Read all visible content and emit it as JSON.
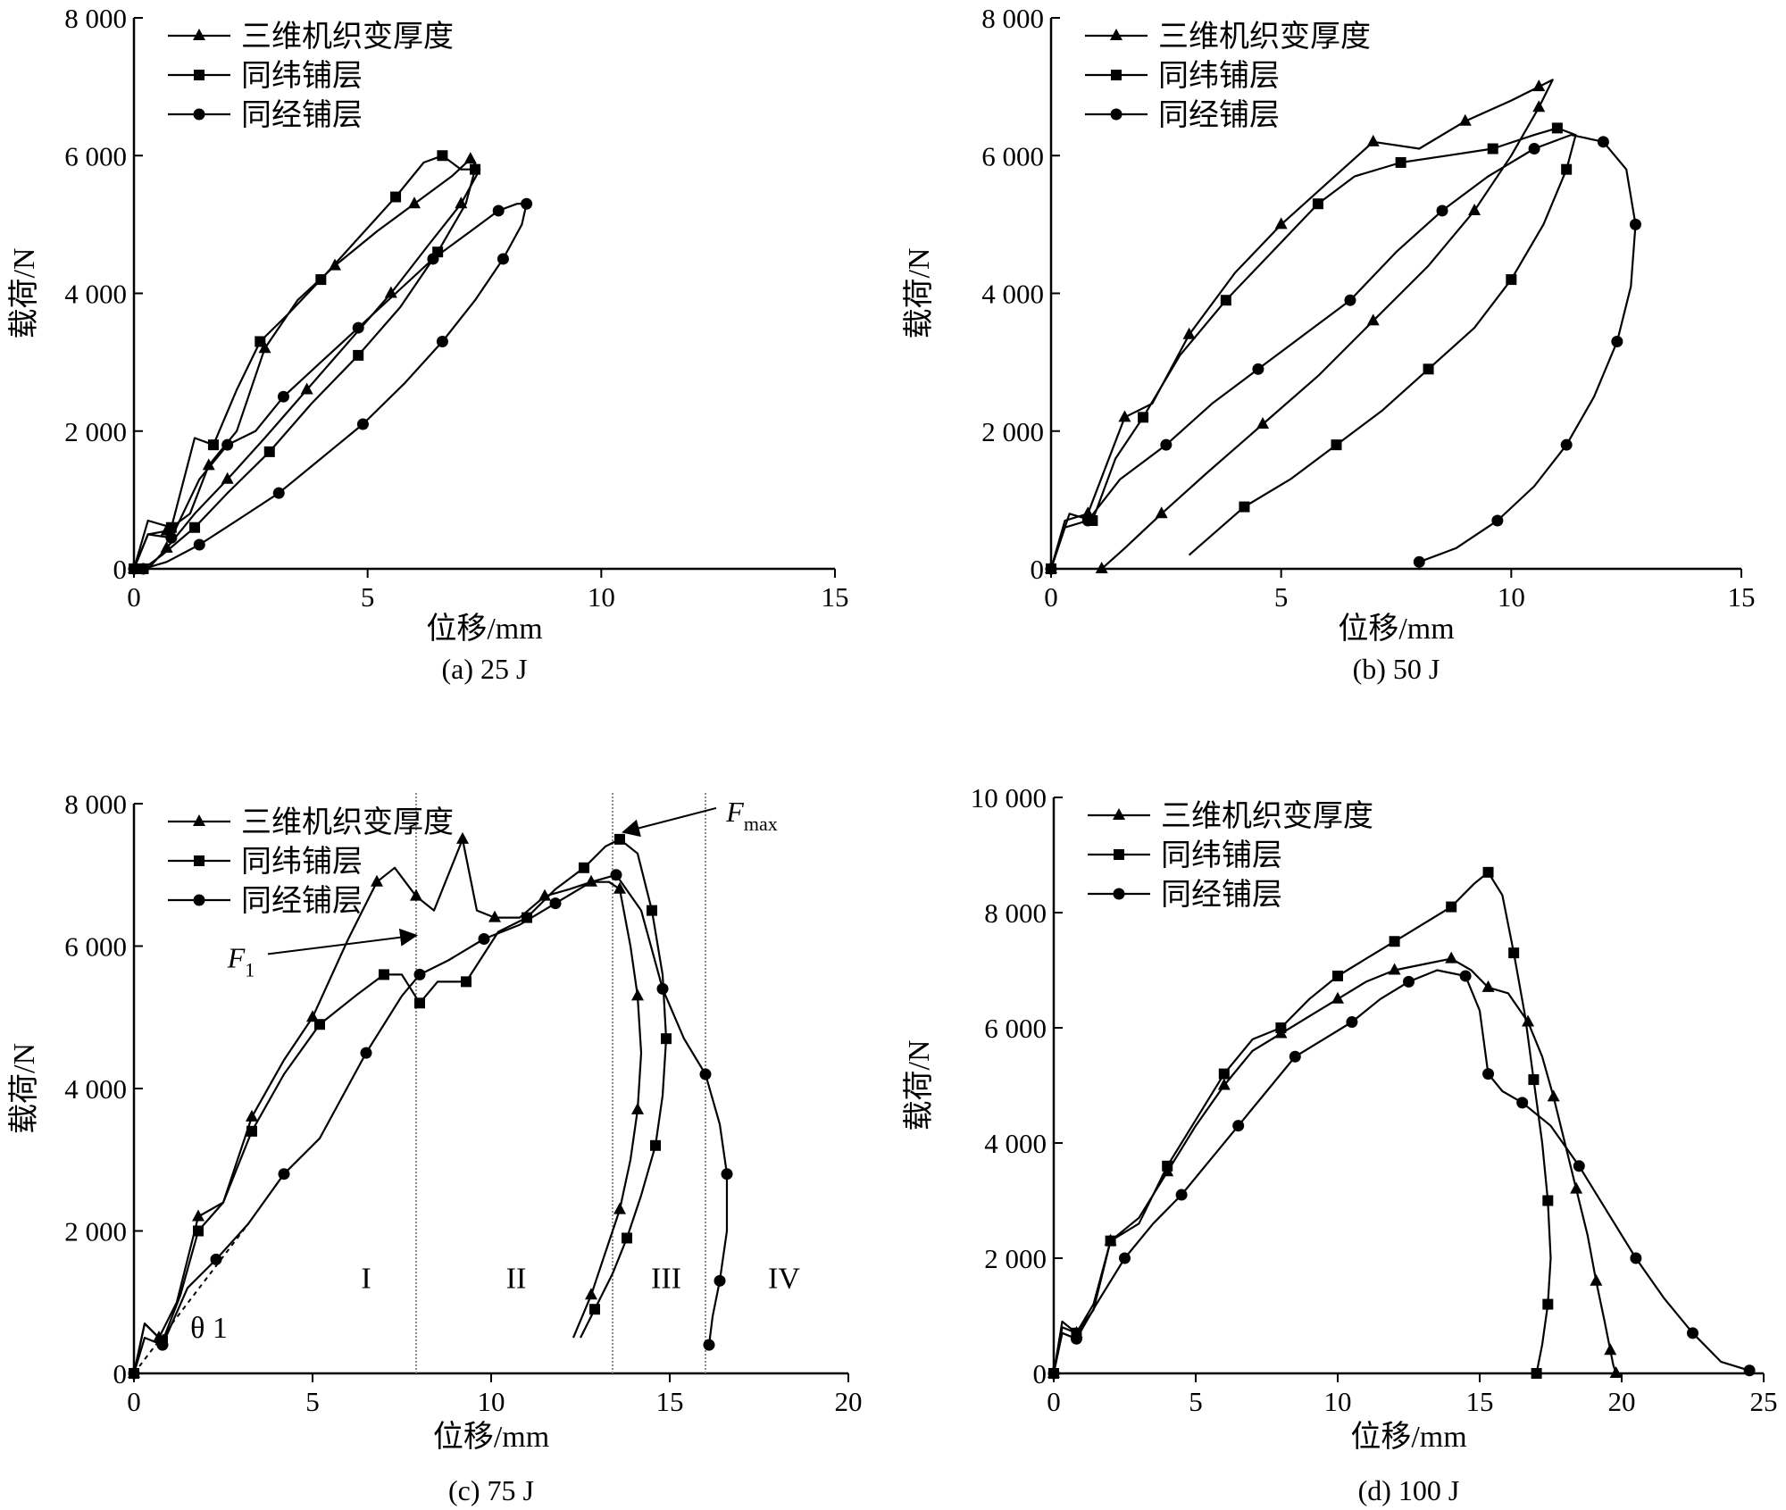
{
  "legend_labels": [
    "三维机织变厚度",
    "同纬铺层",
    "同经铺层"
  ],
  "xlabel": "位移/mm",
  "ylabel": "载荷/N",
  "chart_data": [
    {
      "type": "line",
      "caption": "(a) 25 J",
      "xlabel": "位移/mm",
      "ylabel": "载荷/N",
      "xlim": [
        0,
        15
      ],
      "ylim": [
        0,
        8000
      ],
      "xticks": [
        0,
        5,
        10,
        15
      ],
      "xtick_labels": [
        "0",
        "5",
        "10",
        "15"
      ],
      "yticks": [
        0,
        2000,
        4000,
        6000,
        8000
      ],
      "ytick_labels": [
        "0",
        "2 000",
        "4 000",
        "6 000",
        "8 000"
      ],
      "legend": "top-left",
      "series": [
        {
          "name": "三维机织变厚度",
          "marker": "triangle",
          "x": [
            0,
            0.3,
            0.7,
            1.2,
            1.6,
            2.2,
            2.8,
            3.5,
            4.3,
            5.2,
            6.0,
            6.8,
            7.2,
            7.4,
            7.0,
            6.3,
            5.5,
            4.6,
            3.7,
            2.8,
            2.0,
            1.3,
            0.7,
            0.3
          ],
          "y": [
            0,
            500,
            550,
            800,
            1500,
            2000,
            3200,
            3900,
            4400,
            4900,
            5300,
            5700,
            5950,
            5800,
            5300,
            4700,
            4000,
            3300,
            2600,
            1900,
            1300,
            800,
            300,
            0
          ]
        },
        {
          "name": "同纬铺层",
          "marker": "square",
          "x": [
            0,
            0.3,
            0.8,
            1.3,
            1.7,
            2.2,
            2.7,
            3.3,
            4.0,
            4.8,
            5.6,
            6.2,
            6.6,
            7.0,
            7.3,
            7.1,
            6.5,
            5.7,
            4.8,
            3.8,
            2.9,
            2.0,
            1.3,
            0.6,
            0.2
          ],
          "y": [
            0,
            700,
            600,
            1900,
            1800,
            2600,
            3300,
            3700,
            4200,
            4800,
            5400,
            5900,
            6000,
            5800,
            5800,
            5300,
            4600,
            3800,
            3100,
            2400,
            1700,
            1100,
            600,
            200,
            0
          ]
        },
        {
          "name": "同经铺层",
          "marker": "circle",
          "x": [
            0,
            0.3,
            0.8,
            1.4,
            2.0,
            2.6,
            3.2,
            4.0,
            4.8,
            5.6,
            6.4,
            7.2,
            7.8,
            8.2,
            8.4,
            8.3,
            7.9,
            7.3,
            6.6,
            5.8,
            4.9,
            4.0,
            3.1,
            2.2,
            1.4,
            0.7,
            0.2
          ],
          "y": [
            0,
            500,
            450,
            1300,
            1800,
            2000,
            2500,
            3000,
            3500,
            4000,
            4500,
            4900,
            5200,
            5300,
            5300,
            5000,
            4500,
            3900,
            3300,
            2700,
            2100,
            1600,
            1100,
            700,
            350,
            100,
            0
          ]
        }
      ]
    },
    {
      "type": "line",
      "caption": "(b) 50 J",
      "xlabel": "位移/mm",
      "ylabel": "载荷/N",
      "xlim": [
        0,
        15
      ],
      "ylim": [
        0,
        8000
      ],
      "xticks": [
        0,
        5,
        10,
        15
      ],
      "xtick_labels": [
        "0",
        "5",
        "10",
        "15"
      ],
      "yticks": [
        0,
        2000,
        4000,
        6000,
        8000
      ],
      "ytick_labels": [
        "0",
        "2 000",
        "4 000",
        "6 000",
        "8 000"
      ],
      "legend": "top-left",
      "series": [
        {
          "name": "三维机织变厚度",
          "marker": "triangle",
          "x": [
            0,
            0.3,
            0.8,
            1.2,
            1.6,
            2.2,
            3.0,
            4.0,
            5.0,
            6.0,
            7.0,
            8.0,
            9.0,
            10.0,
            10.6,
            10.9,
            10.6,
            10.0,
            9.2,
            8.2,
            7.0,
            5.8,
            4.6,
            3.4,
            2.4,
            1.6,
            1.1
          ],
          "y": [
            0,
            700,
            800,
            1500,
            2200,
            2400,
            3400,
            4300,
            5000,
            5600,
            6200,
            6100,
            6500,
            6800,
            7000,
            7100,
            6700,
            6000,
            5200,
            4400,
            3600,
            2800,
            2100,
            1400,
            800,
            300,
            0
          ]
        },
        {
          "name": "同纬铺层",
          "marker": "square",
          "x": [
            0,
            0.4,
            0.9,
            1.4,
            2.0,
            2.8,
            3.8,
            4.8,
            5.8,
            6.6,
            7.6,
            8.6,
            9.6,
            10.5,
            11.0,
            11.4,
            11.2,
            10.7,
            10.0,
            9.2,
            8.2,
            7.2,
            6.2,
            5.2,
            4.2,
            3.0
          ],
          "y": [
            0,
            800,
            700,
            1600,
            2200,
            3100,
            3900,
            4600,
            5300,
            5700,
            5900,
            6000,
            6100,
            6300,
            6400,
            6300,
            5800,
            5000,
            4200,
            3500,
            2900,
            2300,
            1800,
            1300,
            900,
            200
          ]
        },
        {
          "name": "同经铺层",
          "marker": "circle",
          "x": [
            0,
            0.3,
            0.8,
            1.5,
            2.5,
            3.5,
            4.5,
            5.5,
            6.5,
            7.5,
            8.5,
            9.5,
            10.5,
            11.3,
            12.0,
            12.5,
            12.7,
            12.6,
            12.3,
            11.8,
            11.2,
            10.5,
            9.7,
            8.8,
            8.0
          ],
          "y": [
            0,
            600,
            700,
            1300,
            1800,
            2400,
            2900,
            3400,
            3900,
            4600,
            5200,
            5700,
            6100,
            6300,
            6200,
            5800,
            5000,
            4100,
            3300,
            2500,
            1800,
            1200,
            700,
            300,
            100
          ]
        }
      ]
    },
    {
      "type": "line",
      "caption": "(c) 75 J",
      "xlabel": "位移/mm",
      "ylabel": "载荷/N",
      "xlim": [
        0,
        20
      ],
      "ylim": [
        0,
        8000
      ],
      "xticks": [
        0,
        5,
        10,
        15,
        20
      ],
      "xtick_labels": [
        "0",
        "5",
        "10",
        "15",
        "20"
      ],
      "yticks": [
        0,
        2000,
        4000,
        6000,
        8000
      ],
      "ytick_labels": [
        "0",
        "2 000",
        "4 000",
        "6 000",
        "8 000"
      ],
      "legend": "top-left",
      "boundaries": [
        7.9,
        13.4,
        16.0
      ],
      "regions": [
        {
          "label": "I",
          "x": 6.5,
          "y": 1200
        },
        {
          "label": "II",
          "x": 10.7,
          "y": 1200
        },
        {
          "label": "III",
          "x": 14.9,
          "y": 1200
        },
        {
          "label": "IV",
          "x": 18.2,
          "y": 1200
        }
      ],
      "theta": {
        "label": "θ 1",
        "x": 2.1,
        "y": 500
      },
      "tangent": {
        "x": [
          0,
          3.2
        ],
        "y": [
          0,
          2100
        ]
      },
      "annotations": [
        {
          "label": "F",
          "sub": "1",
          "text_x": 3.0,
          "text_y": 5700,
          "point_x": 7.9,
          "point_y": 6150
        },
        {
          "label": "F",
          "sub": "max",
          "text_x": 17.3,
          "text_y": 7750,
          "point_x": 13.7,
          "point_y": 7600
        }
      ],
      "series": [
        {
          "name": "三维机织变厚度",
          "marker": "triangle",
          "x": [
            0,
            0.3,
            0.7,
            1.2,
            1.8,
            2.5,
            3.3,
            4.2,
            5.0,
            6.0,
            6.8,
            7.3,
            7.9,
            8.4,
            9.2,
            9.6,
            10.1,
            10.8,
            11.5,
            12.2,
            12.8,
            13.3,
            13.6,
            13.9,
            14.1,
            14.2,
            14.1,
            13.9,
            13.6,
            13.2,
            12.8,
            12.3
          ],
          "y": [
            0,
            700,
            500,
            1000,
            2200,
            2400,
            3600,
            4400,
            5000,
            6100,
            6900,
            7100,
            6700,
            6500,
            7500,
            6500,
            6400,
            6400,
            6700,
            6800,
            6900,
            6900,
            6800,
            6000,
            5300,
            4500,
            3700,
            3000,
            2300,
            1700,
            1100,
            500
          ]
        },
        {
          "name": "同纬铺层",
          "marker": "square",
          "x": [
            0,
            0.3,
            0.8,
            1.3,
            1.8,
            2.5,
            3.3,
            4.2,
            5.2,
            6.2,
            7.0,
            7.5,
            8.0,
            8.5,
            9.3,
            10.2,
            11.0,
            11.8,
            12.6,
            13.2,
            13.6,
            14.1,
            14.5,
            14.8,
            14.9,
            14.8,
            14.6,
            14.2,
            13.8,
            13.4,
            12.9,
            12.5
          ],
          "y": [
            0,
            700,
            450,
            1100,
            2000,
            2400,
            3400,
            4200,
            4900,
            5300,
            5600,
            5600,
            5200,
            5500,
            5500,
            6200,
            6400,
            6800,
            7100,
            7400,
            7500,
            7300,
            6500,
            5600,
            4700,
            3900,
            3200,
            2500,
            1900,
            1400,
            900,
            500
          ]
        },
        {
          "name": "同经铺层",
          "marker": "circle",
          "x": [
            0,
            0.3,
            0.8,
            1.5,
            2.3,
            3.2,
            4.2,
            5.2,
            6.5,
            7.5,
            8.0,
            8.8,
            9.8,
            10.8,
            11.8,
            12.8,
            13.5,
            14.2,
            14.8,
            15.4,
            16.0,
            16.4,
            16.6,
            16.6,
            16.4,
            16.2,
            16.1
          ],
          "y": [
            0,
            500,
            400,
            1200,
            1600,
            2100,
            2800,
            3300,
            4500,
            5300,
            5600,
            5800,
            6100,
            6300,
            6600,
            6900,
            7000,
            6500,
            5400,
            4700,
            4200,
            3500,
            2800,
            2000,
            1300,
            800,
            400
          ]
        }
      ]
    },
    {
      "type": "line",
      "caption": "(d) 100 J",
      "xlabel": "位移/mm",
      "ylabel": "载荷/N",
      "xlim": [
        0,
        25
      ],
      "ylim": [
        0,
        10000
      ],
      "xticks": [
        0,
        5,
        10,
        15,
        20,
        25
      ],
      "xtick_labels": [
        "0",
        "5",
        "10",
        "15",
        "20",
        "25"
      ],
      "yticks": [
        0,
        2000,
        4000,
        6000,
        8000,
        10000
      ],
      "ytick_labels": [
        "0",
        "2 000",
        "4 000",
        "6 000",
        "8 000",
        "10 000"
      ],
      "legend": "top-left",
      "series": [
        {
          "name": "三维机织变厚度",
          "marker": "triangle",
          "x": [
            0,
            0.3,
            0.8,
            1.4,
            2.0,
            3.0,
            4.0,
            5.0,
            6.0,
            7.0,
            8.0,
            9.0,
            10.0,
            11.0,
            12.0,
            13.0,
            14.0,
            14.7,
            15.3,
            16.0,
            16.7,
            17.2,
            17.6,
            18.0,
            18.4,
            18.8,
            19.1,
            19.4,
            19.6,
            19.7,
            19.8
          ],
          "y": [
            0,
            800,
            700,
            1200,
            2300,
            2700,
            3500,
            4300,
            5000,
            5600,
            5900,
            6200,
            6500,
            6800,
            7000,
            7100,
            7200,
            7000,
            6700,
            6600,
            6100,
            5500,
            4800,
            4000,
            3200,
            2400,
            1600,
            900,
            400,
            150,
            0
          ]
        },
        {
          "name": "同纬铺层",
          "marker": "square",
          "x": [
            0,
            0.3,
            0.8,
            1.4,
            2.0,
            3.0,
            4.0,
            5.0,
            6.0,
            7.0,
            8.0,
            9.0,
            10.0,
            11.0,
            12.0,
            13.0,
            14.0,
            14.8,
            15.3,
            15.8,
            16.2,
            16.6,
            16.9,
            17.2,
            17.4,
            17.5,
            17.4,
            17.2,
            17.0
          ],
          "y": [
            0,
            900,
            700,
            1100,
            2300,
            2600,
            3600,
            4400,
            5200,
            5800,
            6000,
            6500,
            6900,
            7200,
            7500,
            7800,
            8100,
            8500,
            8700,
            8300,
            7300,
            6200,
            5100,
            4000,
            3000,
            2000,
            1200,
            500,
            0
          ]
        },
        {
          "name": "同经铺层",
          "marker": "circle",
          "x": [
            0,
            0.3,
            0.8,
            1.5,
            2.5,
            3.5,
            4.5,
            5.5,
            6.5,
            7.5,
            8.5,
            9.5,
            10.5,
            11.5,
            12.5,
            13.5,
            14.5,
            15.0,
            15.3,
            15.8,
            16.5,
            17.5,
            18.5,
            19.5,
            20.5,
            21.5,
            22.5,
            23.5,
            24.5
          ],
          "y": [
            0,
            700,
            600,
            1200,
            2000,
            2600,
            3100,
            3700,
            4300,
            4900,
            5500,
            5800,
            6100,
            6500,
            6800,
            7000,
            6900,
            6300,
            5200,
            4900,
            4700,
            4300,
            3600,
            2800,
            2000,
            1300,
            700,
            200,
            50
          ]
        }
      ]
    }
  ]
}
